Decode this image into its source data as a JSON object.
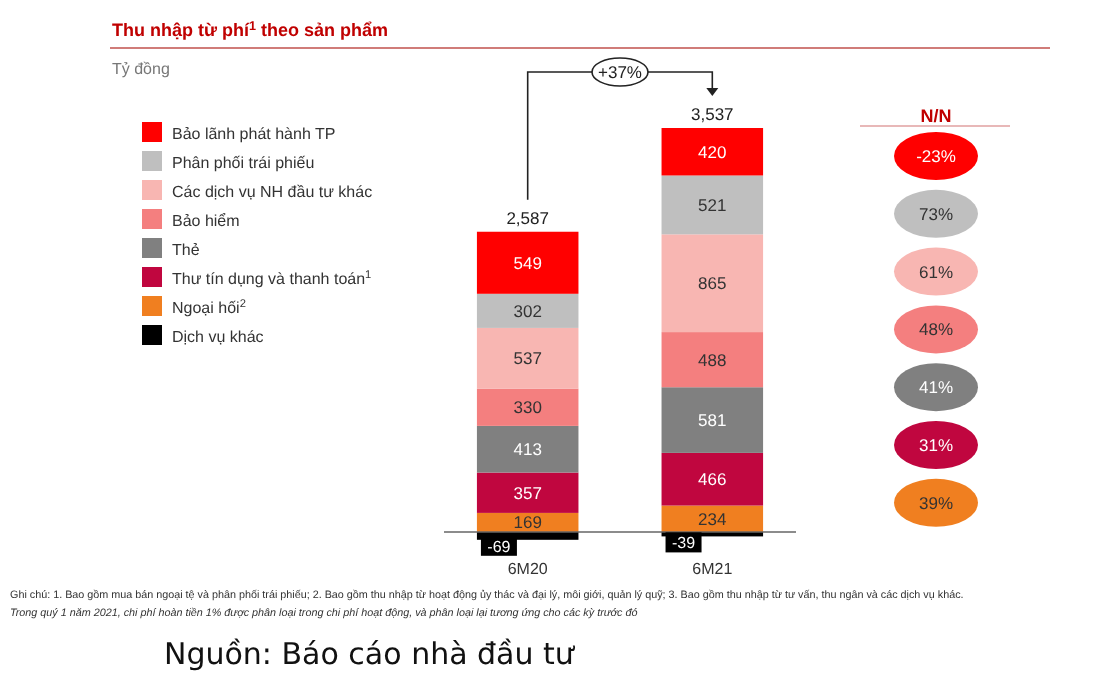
{
  "chart_data": {
    "type": "bar",
    "title": "Thu nhập từ phí$^{1}$ theo sản phẩm",
    "subtitle": "Tỷ đồng",
    "categories": [
      "6M20",
      "6M21"
    ],
    "stacked": true,
    "data_labels": true,
    "legend": "left",
    "series": [
      {
        "name": "Ngoại hối$^{2}$",
        "color": "#f07f20",
        "values": [
          169,
          234
        ]
      },
      {
        "name": "Thư tín dụng và thanh toán$^{1}$",
        "color": "#c0063f",
        "values": [
          357,
          466
        ]
      },
      {
        "name": "Thẻ",
        "color": "#808080",
        "values": [
          413,
          581
        ]
      },
      {
        "name": "Bảo hiểm",
        "color": "#f47f7f",
        "values": [
          330,
          488
        ]
      },
      {
        "name": "Các dịch vụ NH đầu tư khác",
        "color": "#f8b6b2",
        "values": [
          537,
          865
        ]
      },
      {
        "name": "Phân phối trái phiếu",
        "color": "#bfbfbf",
        "values": [
          302,
          521
        ]
      },
      {
        "name": "Bảo lãnh phát hành TP",
        "color": "#ff0000",
        "values": [
          549,
          420
        ]
      },
      {
        "name": "Dịch vụ khác",
        "color": "#000000",
        "values": [
          -69,
          -39
        ]
      }
    ],
    "totals": [
      "2,587",
      "3,537"
    ],
    "annotations": [
      "+37%",
      "N/N",
      "-23%",
      "73%",
      "61%",
      "48%",
      "41%",
      "31%",
      "39%",
      "Ghi chú: 1. Bao gồm mua bán ngoại tệ và phân phối trái phiếu; 2. Bao gồm thu nhập từ hoạt động ủy thác và đại lý, môi giới, quản lý quỹ; 3. Bao gồm thu nhập từ tư vấn, thu ngân và các dịch vụ khác.",
      "Trong quý 1 năm 2021, chi phí hoàn tiền 1% được phân loại trong chi phí hoạt động, và phân loại lại tương ứng cho các kỳ trước đó",
      "Nguồn: Báo cáo nhà đầu tư"
    ]
  }
}
